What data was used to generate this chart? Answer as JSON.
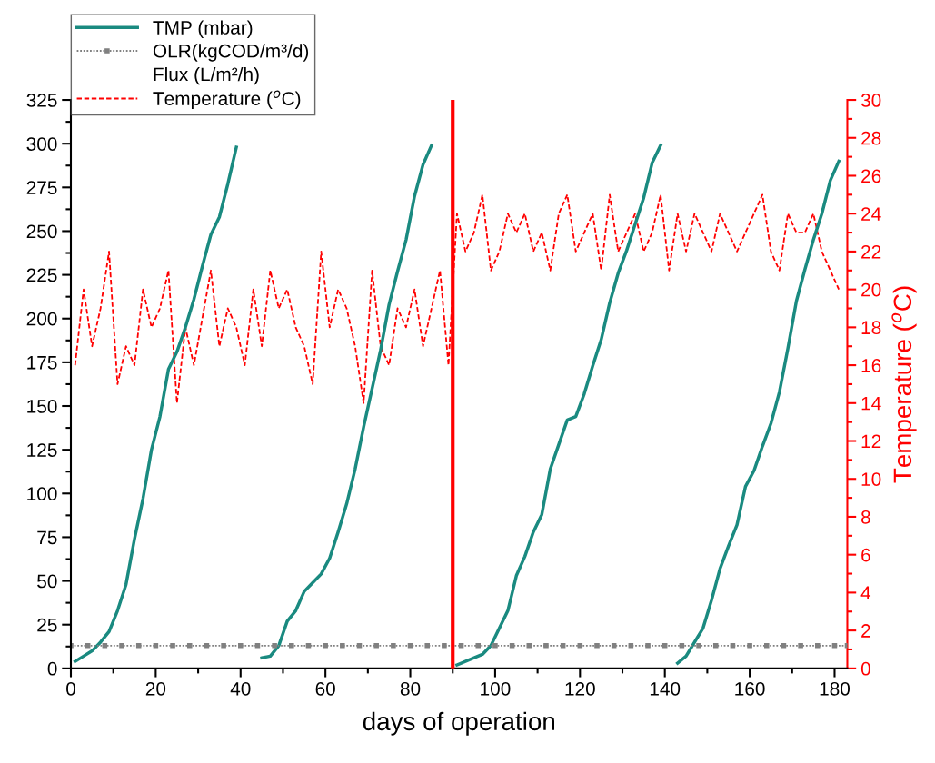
{
  "chart_data": {
    "type": "line",
    "xlabel": "days of operation",
    "y2label": "Temperature ($^{o}$C)",
    "xlim": [
      0,
      183
    ],
    "xticks": [
      0,
      20,
      40,
      60,
      80,
      100,
      120,
      140,
      160,
      180
    ],
    "ylim": [
      0,
      325
    ],
    "yticks": [
      0,
      25,
      50,
      75,
      100,
      125,
      150,
      175,
      200,
      225,
      250,
      275,
      300,
      325
    ],
    "y2lim": [
      0,
      30
    ],
    "y2ticks": [
      0,
      2,
      4,
      6,
      8,
      10,
      12,
      14,
      16,
      18,
      20,
      22,
      24,
      26,
      28,
      30
    ],
    "grid": false,
    "legend": "top left",
    "ref_lines": [
      {
        "axis": "x",
        "value": 90,
        "color": "#ff0000",
        "line_style": "solid"
      }
    ],
    "series": [
      {
        "name": "TMP (mbar)",
        "color": "#1a8a80",
        "line_style": "solid",
        "marker": "none",
        "x": [
          1,
          3,
          5,
          7,
          9,
          11,
          13,
          15,
          17,
          19,
          21,
          23,
          25,
          27,
          29,
          31,
          33,
          35,
          37,
          39,
          42,
          45,
          47,
          49,
          51,
          53,
          55,
          57,
          59,
          61,
          63,
          65,
          67,
          69,
          71,
          73,
          75,
          77,
          79,
          81,
          83,
          85,
          88,
          91,
          97,
          99,
          101,
          103,
          105,
          107,
          109,
          111,
          113,
          115,
          117,
          119,
          121,
          123,
          125,
          127,
          129,
          131,
          133,
          135,
          137,
          139,
          141,
          143,
          145,
          149,
          151,
          153,
          155,
          157,
          159,
          161,
          163,
          165,
          167,
          169,
          171,
          173,
          175,
          177,
          179,
          181
        ],
        "values": [
          4,
          7,
          10,
          15,
          21,
          33,
          48,
          74,
          97,
          125,
          144,
          171,
          181,
          195,
          211,
          230,
          248,
          258,
          277,
          298,
          null,
          6,
          7,
          13,
          27,
          33,
          44,
          49,
          54,
          63,
          78,
          94,
          114,
          138,
          160,
          182,
          208,
          227,
          245,
          270,
          288,
          299,
          null,
          2,
          8,
          13,
          23,
          33,
          53,
          64,
          78,
          88,
          114,
          128,
          142,
          144,
          157,
          173,
          188,
          209,
          226,
          239,
          254,
          269,
          289,
          299,
          null,
          3,
          7,
          23,
          39,
          57,
          70,
          82,
          104,
          113,
          127,
          140,
          158,
          183,
          210,
          228,
          245,
          260,
          279,
          290
        ]
      },
      {
        "name": "OLR(kgCOD/m³/d)",
        "color": "#808080",
        "line_style": "dotted",
        "marker": "square",
        "x": [
          0,
          4,
          8,
          12,
          16,
          20,
          24,
          28,
          32,
          36,
          40,
          44,
          48,
          52,
          56,
          60,
          64,
          68,
          72,
          76,
          80,
          84,
          88,
          92,
          96,
          100,
          104,
          108,
          112,
          116,
          120,
          124,
          128,
          132,
          136,
          140,
          144,
          148,
          152,
          156,
          160,
          164,
          168,
          172,
          176,
          180,
          183
        ],
        "values": [
          13,
          13,
          13,
          13,
          13,
          13,
          13,
          13,
          13,
          13,
          13,
          13,
          13,
          13,
          13,
          13,
          13,
          13,
          13,
          13,
          13,
          13,
          13,
          13,
          13,
          13,
          13,
          13,
          13,
          13,
          13,
          13,
          13,
          13,
          13,
          13,
          13,
          13,
          13,
          13,
          13,
          13,
          13,
          13,
          13,
          13,
          13
        ]
      },
      {
        "name": "Flux (L/m²/h)"
      },
      {
        "name": "Temperature ($^{o}$C)",
        "color": "#ff0000",
        "line_style": "dashed",
        "marker": "none",
        "axis": "y2",
        "x": [
          1,
          3,
          5,
          7,
          9,
          11,
          13,
          15,
          17,
          19,
          21,
          23,
          25,
          27,
          29,
          33,
          35,
          37,
          39,
          41,
          43,
          45,
          47,
          49,
          51,
          53,
          55,
          57,
          59,
          61,
          63,
          65,
          67,
          69,
          71,
          73,
          75,
          77,
          79,
          81,
          83,
          87,
          89,
          91,
          93,
          95,
          97,
          99,
          101,
          103,
          105,
          107,
          109,
          111,
          113,
          115,
          117,
          119,
          123,
          125,
          127,
          129,
          133,
          135,
          137,
          139,
          141,
          143,
          145,
          147,
          151,
          153,
          157,
          163,
          165,
          167,
          169,
          171,
          173,
          175,
          177,
          181
        ],
        "values": [
          16,
          20,
          17,
          19,
          22,
          15,
          17,
          16,
          20,
          18,
          19,
          21,
          14,
          18,
          16,
          21,
          17,
          19,
          18,
          16,
          20,
          17,
          21,
          19,
          20,
          18,
          17,
          15,
          22,
          18,
          20,
          19,
          17,
          14,
          21,
          17,
          16,
          19,
          18,
          20,
          17,
          21,
          16,
          24,
          22,
          23,
          25,
          21,
          22,
          24,
          23,
          24,
          22,
          23,
          21,
          24,
          25,
          22,
          24,
          21,
          25,
          22,
          24,
          22,
          23,
          25,
          21,
          24,
          22,
          24,
          22,
          24,
          22,
          25,
          22,
          21,
          24,
          23,
          23,
          24,
          22,
          20
        ]
      }
    ]
  }
}
